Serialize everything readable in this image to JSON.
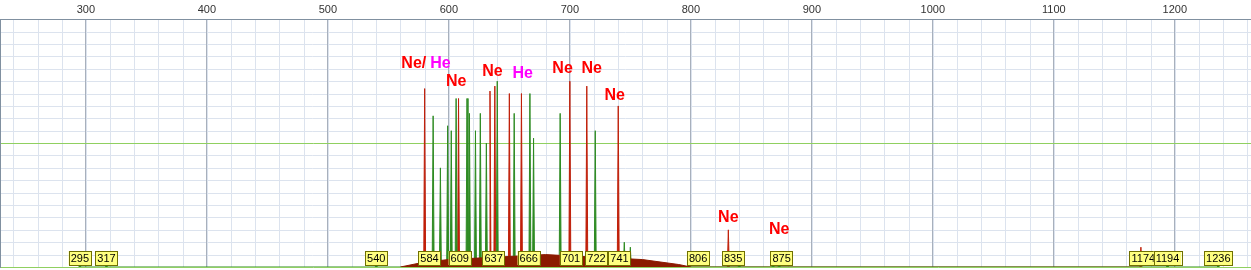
{
  "chart_data": {
    "type": "line",
    "xlim": [
      229,
      1263
    ],
    "xticks": [
      300,
      400,
      500,
      600,
      700,
      800,
      900,
      1000,
      1100,
      1200
    ],
    "ylim": [
      0,
      100
    ],
    "yticks": [
      0,
      50,
      100
    ],
    "grid": true,
    "tick_labels": "x",
    "series": [
      {
        "color": "#8b1a00",
        "x": [
          560,
          580,
          600,
          640,
          680,
          720,
          760,
          790,
          800
        ],
        "values": [
          0,
          2,
          3,
          4,
          5,
          4,
          3,
          1,
          0
        ]
      },
      {
        "color": "#2e8b22",
        "x": [
          294.2,
          295,
          295.8,
          316.2,
          317,
          317.8,
          539.2,
          540,
          540.8,
          586.2,
          587,
          587.8,
          592.2,
          593,
          593.8,
          598.2,
          599,
          599.8,
          601.2,
          602,
          602.8,
          605.2,
          606,
          606.8,
          614.2,
          615,
          615.8,
          616.2,
          617,
          617.8,
          621.2,
          622,
          622.8,
          625.2,
          626,
          626.8,
          630.2,
          631,
          631.8,
          639.2,
          640,
          640.8,
          653.2,
          654,
          654.8,
          666.2,
          667,
          667.8,
          669.2,
          670,
          670.8,
          691.2,
          692,
          692.8,
          720.2,
          721,
          721.8,
          744.2,
          745,
          745.8,
          749.2,
          750,
          750.8,
          839.2,
          840,
          840.8,
          867.2,
          868,
          868.8,
          872.2,
          873,
          873.8,
          1193.2,
          1194,
          1194.8,
          1235.2,
          1236,
          1236.8
        ],
        "values": [
          0,
          1,
          0,
          0,
          1,
          0,
          0,
          3,
          0,
          0,
          61,
          0,
          0,
          40,
          0,
          0,
          57,
          0,
          0,
          55,
          0,
          0,
          68,
          0,
          0,
          68,
          0,
          0,
          62,
          0,
          0,
          55,
          0,
          0,
          62,
          0,
          0,
          50,
          0,
          0,
          75,
          0,
          0,
          62,
          0,
          0,
          70,
          0,
          0,
          52,
          0,
          0,
          62,
          0,
          0,
          55,
          0,
          0,
          10,
          0,
          0,
          8,
          0,
          0,
          5,
          0,
          0,
          5,
          0,
          0,
          4,
          0,
          0,
          2,
          0,
          0,
          1,
          0
        ]
      },
      {
        "color": "#c0200a",
        "x": [
          579.2,
          580,
          580.8,
          607.2,
          608,
          608.8,
          633.2,
          634,
          634.8,
          637.2,
          638,
          638.8,
          649.2,
          650,
          650.8,
          659.2,
          660,
          660.8,
          699.2,
          700,
          700.8,
          713.2,
          714,
          714.8,
          739.2,
          740,
          740.8,
          830.2,
          831,
          831.8,
          1171.2,
          1172,
          1172.8
        ],
        "values": [
          0,
          72,
          0,
          0,
          68,
          0,
          0,
          71,
          0,
          0,
          73,
          0,
          0,
          70,
          0,
          0,
          70,
          0,
          0,
          75,
          0,
          0,
          73,
          0,
          0,
          65,
          0,
          0,
          15,
          0,
          0,
          8,
          0
        ]
      }
    ],
    "annotations": [
      {
        "text": "Ne/",
        "x": 571,
        "y": 82,
        "color": "#ff0000"
      },
      {
        "text": "He",
        "x": 593,
        "y": 82,
        "color": "#ff00ff"
      },
      {
        "text": "Ne",
        "x": 606,
        "y": 75,
        "color": "#ff0000"
      },
      {
        "text": "Ne",
        "x": 636,
        "y": 79,
        "color": "#ff0000"
      },
      {
        "text": "He",
        "x": 661,
        "y": 78,
        "color": "#ff00ff"
      },
      {
        "text": "Ne",
        "x": 694,
        "y": 80,
        "color": "#ff0000"
      },
      {
        "text": "Ne",
        "x": 718,
        "y": 80,
        "color": "#ff0000"
      },
      {
        "text": "Ne",
        "x": 737,
        "y": 69,
        "color": "#ff0000"
      },
      {
        "text": "Ne",
        "x": 831,
        "y": 20,
        "color": "#ff0000"
      },
      {
        "text": "Ne",
        "x": 873,
        "y": 15,
        "color": "#ff0000"
      }
    ],
    "peak_labels": [
      295,
      317,
      540,
      584,
      609,
      637,
      666,
      701,
      722,
      741,
      806,
      835,
      875,
      1174,
      1194,
      1236
    ]
  }
}
